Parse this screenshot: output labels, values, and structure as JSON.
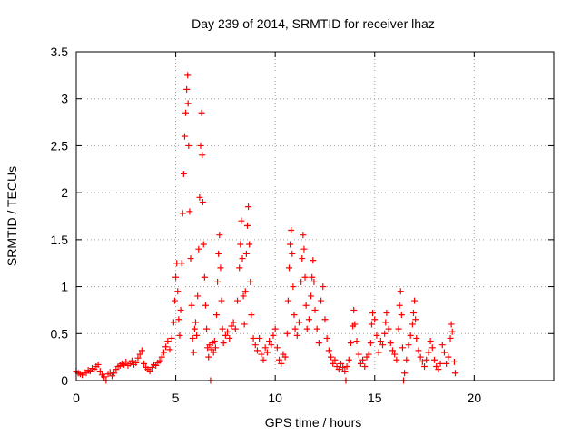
{
  "chart_data": {
    "type": "scatter",
    "title": "Day 239 of 2014, SRMTID for receiver lhaz",
    "xlabel": "GPS time / hours",
    "ylabel": "SRMTID / TECUs",
    "xlim": [
      0,
      24
    ],
    "ylim": [
      0,
      3.5
    ],
    "x_ticks": [
      0,
      5,
      10,
      15,
      20
    ],
    "x_tick_labels": [
      "0",
      "5",
      "10",
      "15",
      "20"
    ],
    "y_ticks": [
      0,
      0.5,
      1,
      1.5,
      2,
      2.5,
      3,
      3.5
    ],
    "y_tick_labels": [
      "0",
      "0.5",
      "1",
      "1.5",
      "2",
      "2.5",
      "3",
      "3.5"
    ],
    "grid": true,
    "marker": "+",
    "marker_color": "#ff0000",
    "series": [
      {
        "name": "SRMTID",
        "points": [
          [
            0.0,
            0.1
          ],
          [
            0.1,
            0.08
          ],
          [
            0.2,
            0.07
          ],
          [
            0.3,
            0.06
          ],
          [
            0.4,
            0.09
          ],
          [
            0.5,
            0.08
          ],
          [
            0.6,
            0.11
          ],
          [
            0.7,
            0.1
          ],
          [
            0.8,
            0.13
          ],
          [
            0.9,
            0.12
          ],
          [
            1.0,
            0.15
          ],
          [
            1.1,
            0.17
          ],
          [
            1.2,
            0.1
          ],
          [
            1.3,
            0.06
          ],
          [
            1.4,
            0.04
          ],
          [
            1.5,
            0.0
          ],
          [
            1.6,
            0.07
          ],
          [
            1.7,
            0.09
          ],
          [
            1.8,
            0.05
          ],
          [
            1.9,
            0.08
          ],
          [
            2.0,
            0.12
          ],
          [
            2.1,
            0.15
          ],
          [
            2.2,
            0.16
          ],
          [
            2.3,
            0.18
          ],
          [
            2.4,
            0.17
          ],
          [
            2.5,
            0.2
          ],
          [
            2.6,
            0.16
          ],
          [
            2.7,
            0.18
          ],
          [
            2.8,
            0.21
          ],
          [
            2.9,
            0.17
          ],
          [
            3.0,
            0.19
          ],
          [
            3.1,
            0.24
          ],
          [
            3.2,
            0.28
          ],
          [
            3.3,
            0.32
          ],
          [
            3.4,
            0.18
          ],
          [
            3.5,
            0.14
          ],
          [
            3.6,
            0.12
          ],
          [
            3.7,
            0.1
          ],
          [
            3.8,
            0.14
          ],
          [
            3.9,
            0.17
          ],
          [
            4.0,
            0.16
          ],
          [
            4.1,
            0.19
          ],
          [
            4.2,
            0.21
          ],
          [
            4.3,
            0.25
          ],
          [
            4.4,
            0.3
          ],
          [
            4.5,
            0.36
          ],
          [
            4.6,
            0.42
          ],
          [
            4.7,
            0.33
          ],
          [
            4.8,
            0.45
          ],
          [
            4.9,
            0.62
          ],
          [
            4.95,
            0.85
          ],
          [
            5.0,
            1.1
          ],
          [
            5.05,
            1.25
          ],
          [
            5.1,
            0.95
          ],
          [
            5.15,
            0.65
          ],
          [
            5.2,
            0.48
          ],
          [
            5.25,
            0.75
          ],
          [
            5.3,
            1.25
          ],
          [
            5.35,
            1.78
          ],
          [
            5.4,
            2.2
          ],
          [
            5.45,
            2.6
          ],
          [
            5.5,
            2.85
          ],
          [
            5.55,
            3.1
          ],
          [
            5.6,
            3.25
          ],
          [
            5.62,
            2.95
          ],
          [
            5.65,
            2.5
          ],
          [
            5.7,
            1.8
          ],
          [
            5.75,
            1.3
          ],
          [
            5.8,
            0.8
          ],
          [
            5.85,
            0.45
          ],
          [
            5.9,
            0.3
          ],
          [
            5.95,
            0.55
          ],
          [
            6.0,
            0.62
          ],
          [
            6.05,
            0.48
          ],
          [
            6.1,
            0.9
          ],
          [
            6.15,
            1.4
          ],
          [
            6.2,
            1.95
          ],
          [
            6.25,
            2.5
          ],
          [
            6.3,
            2.85
          ],
          [
            6.33,
            2.4
          ],
          [
            6.36,
            1.9
          ],
          [
            6.4,
            1.45
          ],
          [
            6.45,
            1.1
          ],
          [
            6.5,
            0.8
          ],
          [
            6.55,
            0.55
          ],
          [
            6.6,
            0.35
          ],
          [
            6.65,
            0.25
          ],
          [
            6.7,
            0.38
          ],
          [
            6.75,
            0.0
          ],
          [
            6.8,
            0.33
          ],
          [
            6.85,
            0.4
          ],
          [
            6.9,
            0.3
          ],
          [
            6.95,
            0.42
          ],
          [
            7.0,
            0.35
          ],
          [
            7.05,
            0.7
          ],
          [
            7.1,
            1.05
          ],
          [
            7.15,
            1.35
          ],
          [
            7.2,
            1.55
          ],
          [
            7.25,
            1.2
          ],
          [
            7.3,
            0.85
          ],
          [
            7.35,
            0.55
          ],
          [
            7.4,
            0.4
          ],
          [
            7.5,
            0.48
          ],
          [
            7.6,
            0.52
          ],
          [
            7.7,
            0.45
          ],
          [
            7.8,
            0.58
          ],
          [
            7.9,
            0.62
          ],
          [
            8.0,
            0.55
          ],
          [
            8.1,
            0.85
          ],
          [
            8.2,
            1.2
          ],
          [
            8.25,
            1.45
          ],
          [
            8.3,
            1.7
          ],
          [
            8.35,
            1.3
          ],
          [
            8.4,
            0.9
          ],
          [
            8.45,
            0.6
          ],
          [
            8.5,
            0.95
          ],
          [
            8.55,
            1.35
          ],
          [
            8.6,
            1.65
          ],
          [
            8.65,
            1.85
          ],
          [
            8.7,
            1.45
          ],
          [
            8.75,
            1.05
          ],
          [
            8.8,
            0.7
          ],
          [
            8.9,
            0.45
          ],
          [
            9.0,
            0.38
          ],
          [
            9.1,
            0.32
          ],
          [
            9.2,
            0.45
          ],
          [
            9.3,
            0.28
          ],
          [
            9.4,
            0.22
          ],
          [
            9.5,
            0.35
          ],
          [
            9.6,
            0.3
          ],
          [
            9.7,
            0.42
          ],
          [
            9.8,
            0.38
          ],
          [
            9.9,
            0.48
          ],
          [
            10.0,
            0.55
          ],
          [
            10.1,
            0.35
          ],
          [
            10.2,
            0.22
          ],
          [
            10.3,
            0.18
          ],
          [
            10.4,
            0.28
          ],
          [
            10.5,
            0.25
          ],
          [
            10.6,
            0.5
          ],
          [
            10.65,
            0.85
          ],
          [
            10.7,
            1.2
          ],
          [
            10.75,
            1.45
          ],
          [
            10.8,
            1.6
          ],
          [
            10.85,
            1.35
          ],
          [
            10.9,
            1.0
          ],
          [
            10.95,
            0.7
          ],
          [
            11.0,
            0.55
          ],
          [
            11.1,
            0.48
          ],
          [
            11.2,
            0.62
          ],
          [
            11.3,
            1.05
          ],
          [
            11.35,
            1.3
          ],
          [
            11.4,
            1.55
          ],
          [
            11.45,
            1.4
          ],
          [
            11.5,
            1.1
          ],
          [
            11.55,
            0.8
          ],
          [
            11.6,
            0.55
          ],
          [
            11.7,
            0.65
          ],
          [
            11.8,
            0.9
          ],
          [
            11.85,
            1.1
          ],
          [
            11.9,
            1.28
          ],
          [
            11.95,
            1.05
          ],
          [
            12.0,
            0.75
          ],
          [
            12.1,
            0.55
          ],
          [
            12.2,
            0.4
          ],
          [
            12.3,
            0.85
          ],
          [
            12.4,
            1.0
          ],
          [
            12.5,
            0.65
          ],
          [
            12.6,
            0.45
          ],
          [
            12.7,
            0.32
          ],
          [
            12.8,
            0.25
          ],
          [
            12.9,
            0.18
          ],
          [
            13.0,
            0.22
          ],
          [
            13.1,
            0.15
          ],
          [
            13.2,
            0.12
          ],
          [
            13.3,
            0.18
          ],
          [
            13.4,
            0.14
          ],
          [
            13.5,
            0.1
          ],
          [
            13.55,
            0.0
          ],
          [
            13.6,
            0.15
          ],
          [
            13.7,
            0.22
          ],
          [
            13.8,
            0.4
          ],
          [
            13.9,
            0.58
          ],
          [
            13.95,
            0.75
          ],
          [
            14.0,
            0.6
          ],
          [
            14.1,
            0.42
          ],
          [
            14.2,
            0.28
          ],
          [
            14.3,
            0.18
          ],
          [
            14.4,
            0.22
          ],
          [
            14.5,
            0.15
          ],
          [
            14.6,
            0.25
          ],
          [
            14.7,
            0.28
          ],
          [
            14.8,
            0.4
          ],
          [
            14.85,
            0.6
          ],
          [
            14.9,
            0.72
          ],
          [
            15.0,
            0.65
          ],
          [
            15.1,
            0.48
          ],
          [
            15.2,
            0.3
          ],
          [
            15.3,
            0.42
          ],
          [
            15.4,
            0.38
          ],
          [
            15.5,
            0.5
          ],
          [
            15.55,
            0.62
          ],
          [
            15.6,
            0.72
          ],
          [
            15.7,
            0.55
          ],
          [
            15.8,
            0.4
          ],
          [
            15.9,
            0.32
          ],
          [
            16.0,
            0.28
          ],
          [
            16.1,
            0.22
          ],
          [
            16.2,
            0.55
          ],
          [
            16.25,
            0.8
          ],
          [
            16.3,
            0.95
          ],
          [
            16.35,
            0.7
          ],
          [
            16.4,
            0.35
          ],
          [
            16.45,
            0.0
          ],
          [
            16.5,
            0.08
          ],
          [
            16.6,
            0.22
          ],
          [
            16.7,
            0.38
          ],
          [
            16.8,
            0.48
          ],
          [
            16.9,
            0.6
          ],
          [
            16.95,
            0.72
          ],
          [
            17.0,
            0.85
          ],
          [
            17.05,
            0.65
          ],
          [
            17.1,
            0.45
          ],
          [
            17.2,
            0.32
          ],
          [
            17.3,
            0.25
          ],
          [
            17.4,
            0.2
          ],
          [
            17.5,
            0.15
          ],
          [
            17.6,
            0.22
          ],
          [
            17.7,
            0.3
          ],
          [
            17.8,
            0.42
          ],
          [
            17.9,
            0.35
          ],
          [
            18.0,
            0.22
          ],
          [
            18.1,
            0.15
          ],
          [
            18.2,
            0.12
          ],
          [
            18.3,
            0.18
          ],
          [
            18.4,
            0.38
          ],
          [
            18.5,
            0.3
          ],
          [
            18.6,
            0.18
          ],
          [
            18.7,
            0.25
          ],
          [
            18.8,
            0.45
          ],
          [
            18.85,
            0.6
          ],
          [
            18.9,
            0.52
          ],
          [
            19.0,
            0.2
          ],
          [
            19.05,
            0.08
          ]
        ]
      }
    ]
  }
}
